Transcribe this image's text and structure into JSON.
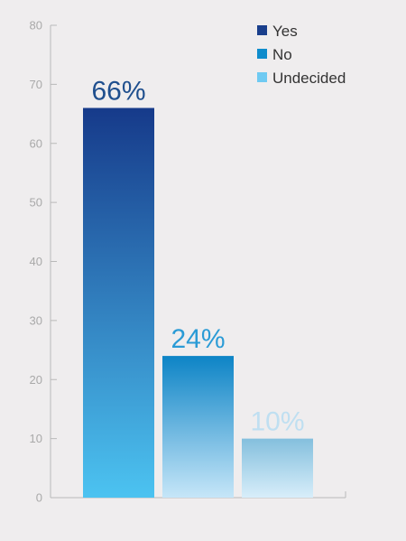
{
  "chart_data": {
    "type": "bar",
    "title": "",
    "xlabel": "",
    "ylabel": "",
    "categories": [
      "Yes",
      "No",
      "Undecided"
    ],
    "values": [
      66,
      24,
      10
    ],
    "data_labels": [
      "66%",
      "24%",
      "10%"
    ],
    "ylim": [
      0,
      80
    ],
    "yticks": [
      0,
      10,
      20,
      30,
      40,
      50,
      60,
      70,
      80
    ],
    "grid": false,
    "legend": {
      "placement": "top-right",
      "entries": [
        {
          "label": "Yes",
          "color": "#1a3f8c"
        },
        {
          "label": "No",
          "color": "#0f8ccc"
        },
        {
          "label": "Undecided",
          "color": "#6fcaf2"
        }
      ]
    },
    "colors": {
      "bar_gradients": [
        [
          "#163a8a",
          "#4cc3f1"
        ],
        [
          "#0d84c6",
          "#c6e6f8"
        ],
        [
          "#84bfdd",
          "#d8eefa"
        ]
      ],
      "data_label_colors": [
        "#1f4f8e",
        "#2a9bd6",
        "#bfdff1"
      ]
    }
  }
}
